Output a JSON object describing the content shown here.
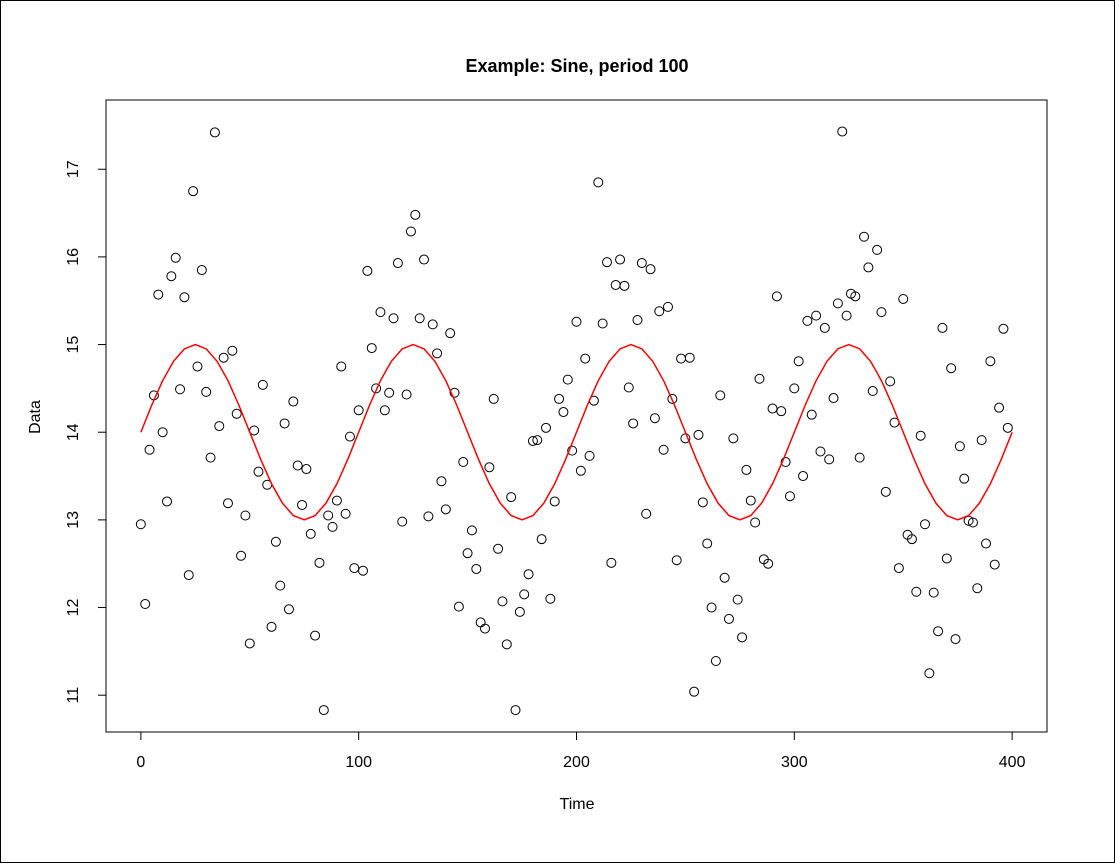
{
  "chart_data": {
    "type": "scatter",
    "title": "Example: Sine, period 100",
    "x_label": "Time",
    "y_label": "Data",
    "xlim": [
      -16,
      416
    ],
    "ylim": [
      10.58,
      17.79
    ],
    "xticks": [
      0,
      100,
      200,
      300,
      400
    ],
    "yticks": [
      11,
      12,
      13,
      14,
      15,
      16,
      17
    ],
    "points": {
      "type": "scatter",
      "color": "#000000",
      "x": [
        0,
        2,
        4,
        6,
        8,
        10,
        12,
        14,
        16,
        18,
        20,
        22,
        24,
        26,
        28,
        30,
        32,
        34,
        36,
        38,
        40,
        42,
        44,
        46,
        48,
        50,
        52,
        54,
        56,
        58,
        60,
        62,
        64,
        66,
        68,
        70,
        72,
        74,
        76,
        78,
        80,
        82,
        84,
        86,
        88,
        90,
        92,
        94,
        96,
        98,
        100,
        102,
        104,
        106,
        108,
        110,
        112,
        114,
        116,
        118,
        120,
        122,
        124,
        126,
        128,
        130,
        132,
        134,
        136,
        138,
        140,
        142,
        144,
        146,
        148,
        150,
        152,
        154,
        156,
        158,
        160,
        162,
        164,
        166,
        168,
        170,
        172,
        174,
        176,
        178,
        180,
        182,
        184,
        186,
        188,
        190,
        192,
        194,
        196,
        198,
        200,
        202,
        204,
        206,
        208,
        210,
        212,
        214,
        216,
        218,
        220,
        222,
        224,
        226,
        228,
        230,
        232,
        234,
        236,
        238,
        240,
        242,
        244,
        246,
        248,
        250,
        252,
        254,
        256,
        258,
        260,
        262,
        264,
        266,
        268,
        270,
        272,
        274,
        276,
        278,
        280,
        282,
        284,
        286,
        288,
        290,
        292,
        294,
        296,
        298,
        300,
        302,
        304,
        306,
        308,
        310,
        312,
        314,
        316,
        318,
        320,
        322,
        324,
        326,
        328,
        330,
        332,
        334,
        336,
        338,
        340,
        342,
        344,
        346,
        348,
        350,
        352,
        354,
        356,
        358,
        360,
        362,
        364,
        366,
        368,
        370,
        372,
        374,
        376,
        378,
        380,
        382,
        384,
        386,
        388,
        390,
        392,
        394,
        396,
        398
      ],
      "values": [
        12.95,
        12.04,
        13.8,
        14.42,
        15.57,
        14.0,
        13.21,
        15.78,
        15.99,
        14.49,
        15.54,
        12.37,
        16.75,
        14.75,
        15.85,
        14.46,
        13.71,
        17.42,
        14.07,
        14.85,
        13.19,
        14.93,
        14.21,
        12.59,
        13.05,
        11.59,
        14.02,
        13.55,
        14.54,
        13.4,
        11.78,
        12.75,
        12.25,
        14.1,
        11.98,
        14.35,
        13.62,
        13.17,
        13.58,
        12.84,
        11.68,
        12.51,
        10.83,
        13.05,
        12.92,
        13.22,
        14.75,
        13.07,
        13.95,
        12.45,
        14.25,
        12.42,
        15.84,
        14.96,
        14.5,
        15.37,
        14.25,
        14.45,
        15.3,
        15.93,
        12.98,
        14.43,
        16.29,
        16.48,
        15.3,
        15.97,
        13.04,
        15.23,
        14.9,
        13.44,
        13.12,
        15.13,
        14.45,
        12.01,
        13.66,
        12.62,
        12.88,
        12.44,
        11.83,
        11.76,
        13.6,
        14.38,
        12.67,
        12.07,
        11.58,
        13.26,
        10.83,
        11.95,
        12.15,
        12.38,
        13.9,
        13.91,
        12.78,
        14.05,
        12.1,
        13.21,
        14.38,
        14.23,
        14.6,
        13.79,
        15.26,
        13.56,
        14.84,
        13.73,
        14.36,
        16.85,
        15.24,
        15.94,
        12.51,
        15.68,
        15.97,
        15.67,
        14.51,
        14.1,
        15.28,
        15.93,
        13.07,
        15.86,
        14.16,
        15.38,
        13.8,
        15.43,
        14.38,
        12.54,
        14.84,
        13.93,
        14.85,
        11.04,
        13.97,
        13.2,
        12.73,
        12.0,
        11.39,
        14.42,
        12.34,
        11.87,
        13.93,
        12.09,
        11.66,
        13.57,
        13.22,
        12.97,
        14.61,
        12.55,
        12.5,
        14.27,
        15.55,
        14.24,
        13.66,
        13.27,
        14.5,
        14.81,
        13.5,
        15.27,
        14.2,
        15.33,
        13.78,
        15.19,
        13.69,
        14.39,
        15.47,
        17.43,
        15.33,
        15.58,
        15.55,
        13.71,
        16.23,
        15.88,
        14.47,
        16.08,
        15.37,
        13.32,
        14.58,
        14.11,
        12.45,
        15.52,
        12.83,
        12.78,
        12.18,
        13.96,
        12.95,
        11.25,
        12.17,
        11.73,
        15.19,
        12.56,
        14.73,
        11.64,
        13.84,
        13.47,
        12.99,
        12.97,
        12.22,
        13.91,
        12.73,
        14.81,
        12.49,
        14.28,
        15.18,
        14.05
      ]
    },
    "curve": {
      "type": "line",
      "color": "#ff0000",
      "x": [
        0,
        5,
        10,
        15,
        20,
        25,
        30,
        35,
        40,
        45,
        50,
        55,
        60,
        65,
        70,
        75,
        80,
        85,
        90,
        95,
        100,
        105,
        110,
        115,
        120,
        125,
        130,
        135,
        140,
        145,
        150,
        155,
        160,
        165,
        170,
        175,
        180,
        185,
        190,
        195,
        200,
        205,
        210,
        215,
        220,
        225,
        230,
        235,
        240,
        245,
        250,
        255,
        260,
        265,
        270,
        275,
        280,
        285,
        290,
        295,
        300,
        305,
        310,
        315,
        320,
        325,
        330,
        335,
        340,
        345,
        350,
        355,
        360,
        365,
        370,
        375,
        380,
        385,
        390,
        395,
        400
      ],
      "values": [
        14,
        14.309,
        14.588,
        14.809,
        14.951,
        15,
        14.951,
        14.809,
        14.588,
        14.309,
        14,
        13.691,
        13.412,
        13.191,
        13.049,
        13,
        13.049,
        13.191,
        13.412,
        13.691,
        14,
        14.309,
        14.588,
        14.809,
        14.951,
        15,
        14.951,
        14.809,
        14.588,
        14.309,
        14,
        13.691,
        13.412,
        13.191,
        13.049,
        13,
        13.049,
        13.191,
        13.412,
        13.691,
        14,
        14.309,
        14.588,
        14.809,
        14.951,
        15,
        14.951,
        14.809,
        14.588,
        14.309,
        14,
        13.691,
        13.412,
        13.191,
        13.049,
        13,
        13.049,
        13.191,
        13.412,
        13.691,
        14,
        14.309,
        14.588,
        14.809,
        14.951,
        15,
        14.951,
        14.809,
        14.588,
        14.309,
        14,
        13.691,
        13.412,
        13.191,
        13.049,
        13,
        13.049,
        13.191,
        13.412,
        13.691,
        14
      ]
    }
  }
}
